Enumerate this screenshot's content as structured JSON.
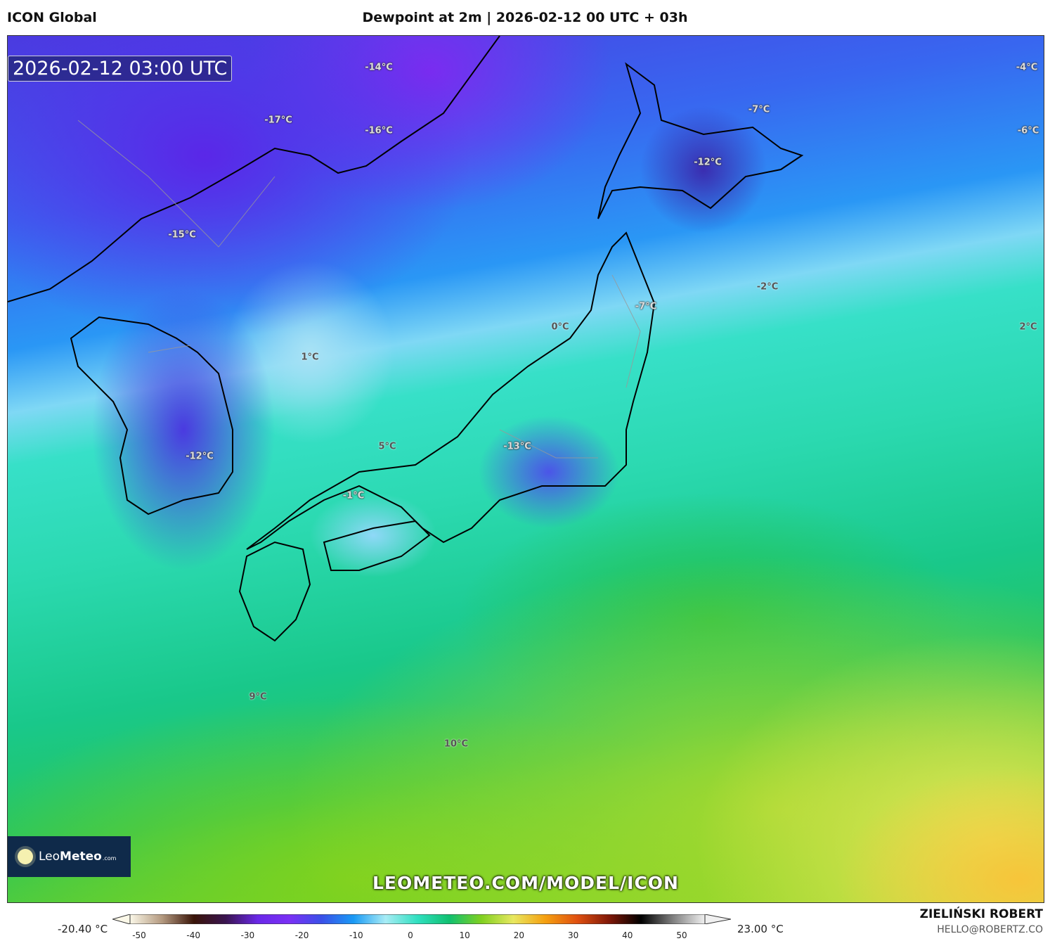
{
  "header": {
    "model": "ICON Global",
    "title": "Dewpoint at 2m | 2026-02-12 00 UTC + 03h"
  },
  "map": {
    "timestamp": "2026-02-12 03:00 UTC",
    "variable": "Dewpoint at 2m",
    "labels": [
      "-14°C",
      "-17°C",
      "-16°C",
      "-15°C",
      "-7°C",
      "-12°C",
      "-4°C",
      "-6°C",
      "-2°C",
      "-7°C",
      "2°C",
      "0°C",
      "1°C",
      "5°C",
      "-13°C",
      "-12°C",
      "-1°C",
      "9°C",
      "10°C"
    ],
    "watermark_url": "LEOMETEO.COM/MODEL/ICON",
    "logo": {
      "part1": "Leo",
      "part2": "Meteo",
      "suffix": ".com"
    }
  },
  "colorbar": {
    "min_label": "-20.40 °C",
    "max_label": "23.00 °C",
    "ticks": [
      "-50",
      "-40",
      "-30",
      "-20",
      "-10",
      "0",
      "10",
      "20",
      "30",
      "40",
      "50"
    ],
    "colors": [
      "#fbf8e8",
      "#b49a80",
      "#3a1408",
      "#3a1450",
      "#6a28e8",
      "#7a30f5",
      "#3a50e8",
      "#1a9af5",
      "#a8ecf5",
      "#30e0c0",
      "#10c070",
      "#80d020",
      "#e8e860",
      "#f5a010",
      "#e05010",
      "#801808",
      "#000000",
      "#808080",
      "#f0f0f0"
    ]
  },
  "footer": {
    "author": "ZIELIŃSKI ROBERT",
    "email": "HELLO@ROBERTZ.CO"
  }
}
